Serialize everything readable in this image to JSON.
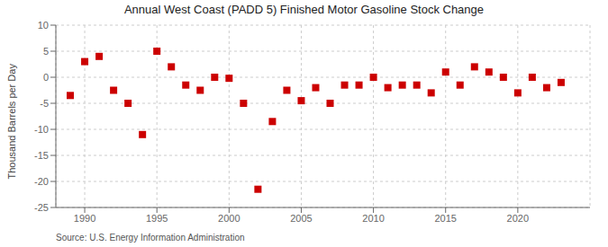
{
  "chart_data": {
    "type": "scatter",
    "title": "Annual West Coast (PADD 5) Finished Motor Gasoline Stock Change",
    "ylabel": "Thousand Barrels per Day",
    "annotation": "Source: U.S. Energy Information Administration",
    "x": [
      1989,
      1990,
      1991,
      1992,
      1993,
      1994,
      1995,
      1996,
      1997,
      1998,
      1999,
      2000,
      2001,
      2002,
      2003,
      2004,
      2005,
      2006,
      2007,
      2008,
      2009,
      2010,
      2011,
      2012,
      2013,
      2014,
      2015,
      2016,
      2017,
      2018,
      2019,
      2020,
      2021,
      2022,
      2023
    ],
    "values": [
      -3.5,
      3.0,
      4.0,
      -2.5,
      -5.0,
      -11.0,
      5.0,
      2.0,
      -1.5,
      -2.5,
      0.0,
      -0.2,
      -5.0,
      -21.5,
      -8.5,
      -2.5,
      -4.5,
      -2.0,
      -5.0,
      -1.5,
      -1.5,
      0.0,
      -2.0,
      -1.5,
      -1.5,
      -3.0,
      1.0,
      -1.5,
      2.0,
      1.0,
      0.0,
      -3.0,
      0.0,
      -2.0,
      -1.0
    ],
    "color": "#cc0000",
    "marker": "square",
    "xlim": [
      1988,
      2025
    ],
    "ylim": [
      -25,
      10
    ],
    "xticks": [
      1990,
      1995,
      2000,
      2005,
      2010,
      2015,
      2020
    ],
    "yticks": [
      -25,
      -20,
      -15,
      -10,
      -5,
      0,
      5,
      10
    ],
    "grid": true
  }
}
